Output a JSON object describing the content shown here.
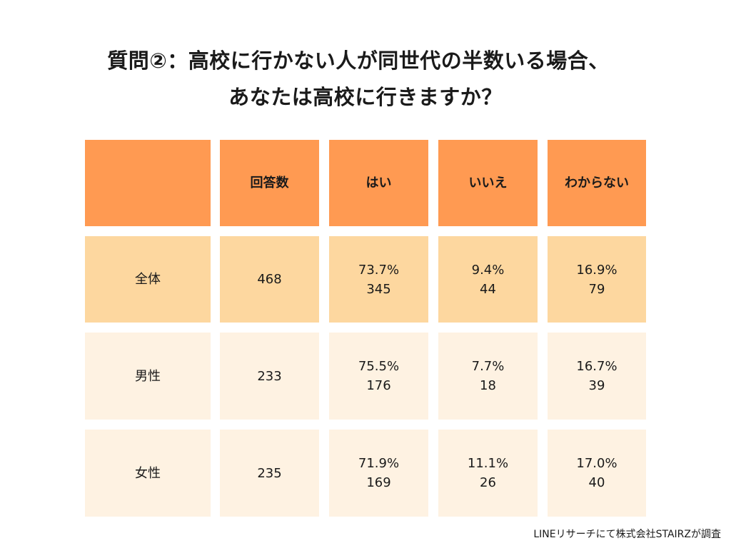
{
  "title": {
    "line1": "質問②：高校に行かない人が同世代の半数いる場合、",
    "line2": "あなたは高校に行きますか？"
  },
  "table": {
    "headers": [
      "",
      "回答数",
      "はい",
      "いいえ",
      "わからない"
    ],
    "rows": [
      {
        "label": "全体",
        "count": "468",
        "yes": {
          "pct": "73.7%",
          "n": "345"
        },
        "no": {
          "pct": "9.4%",
          "n": "44"
        },
        "unknown": {
          "pct": "16.9%",
          "n": "79"
        }
      },
      {
        "label": "男性",
        "count": "233",
        "yes": {
          "pct": "75.5%",
          "n": "176"
        },
        "no": {
          "pct": "7.7%",
          "n": "18"
        },
        "unknown": {
          "pct": "16.7%",
          "n": "39"
        }
      },
      {
        "label": "女性",
        "count": "235",
        "yes": {
          "pct": "71.9%",
          "n": "169"
        },
        "no": {
          "pct": "11.1%",
          "n": "26"
        },
        "unknown": {
          "pct": "17.0%",
          "n": "40"
        }
      }
    ]
  },
  "source": "LINEリサーチにて株式会社STAIRZが調査",
  "colors": {
    "header": "#FF9A52",
    "row_total": "#FDD79F",
    "row_gender": "#FEF2E2"
  }
}
